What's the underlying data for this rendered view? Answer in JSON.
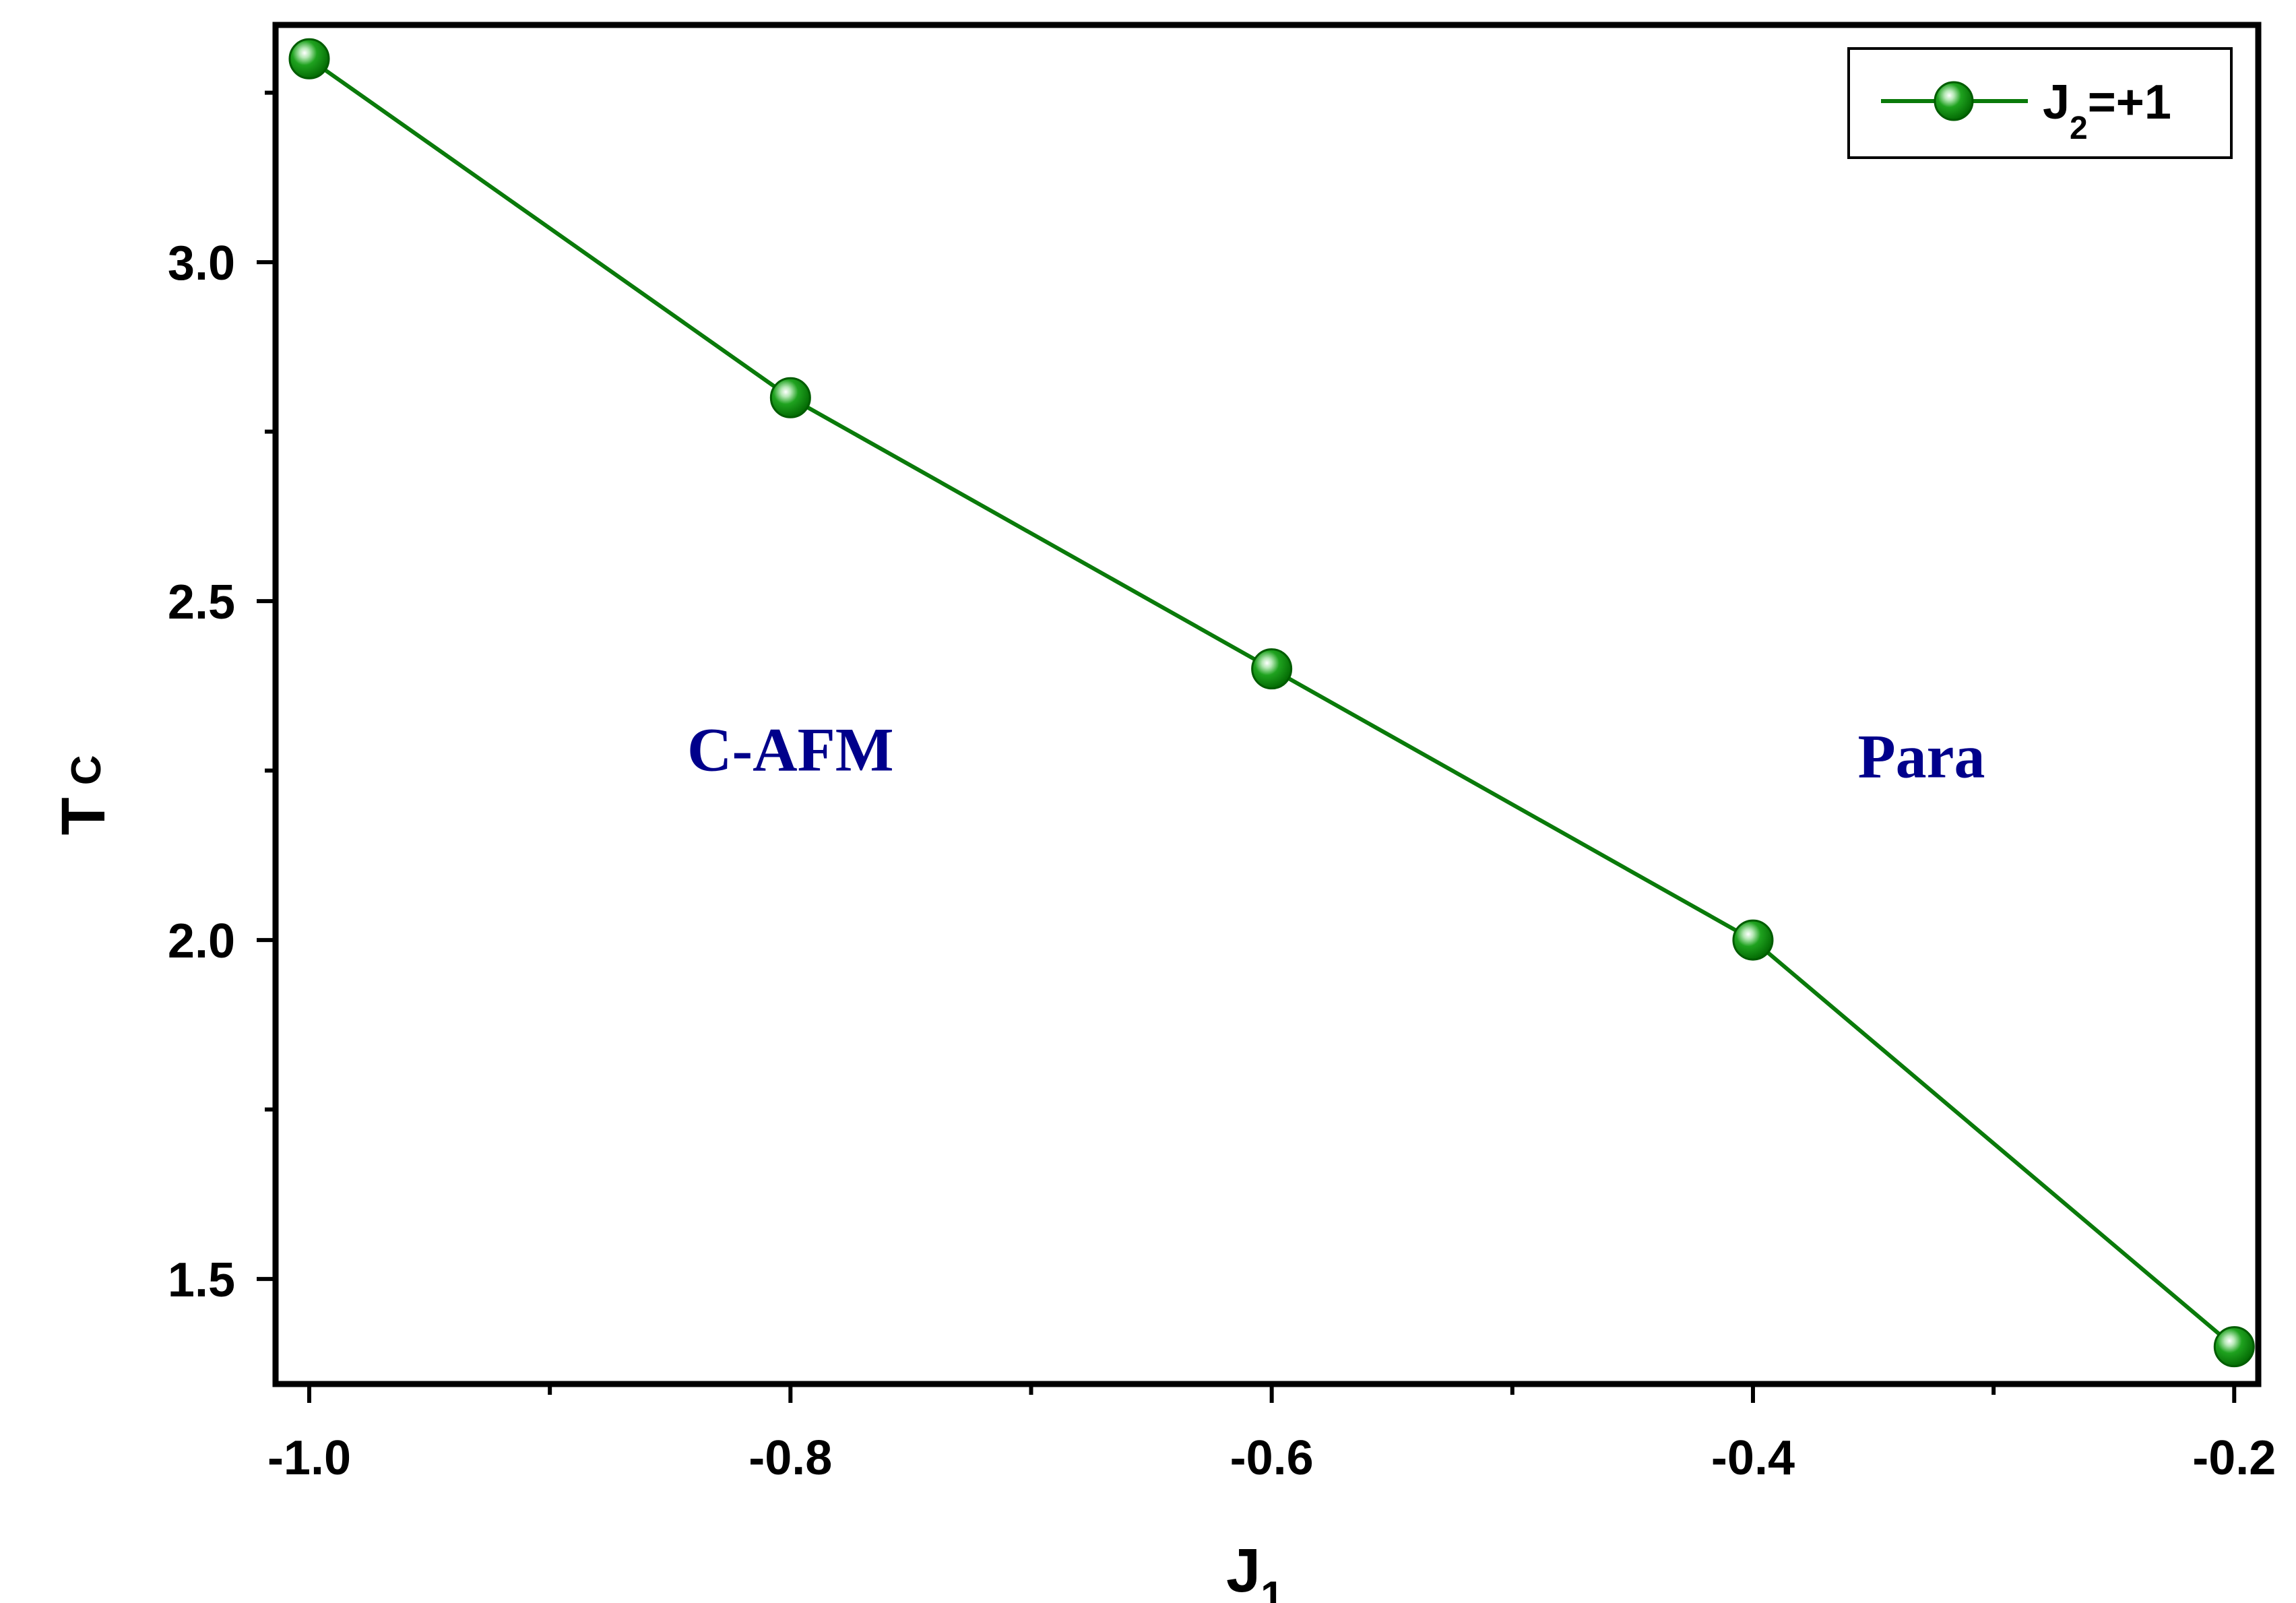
{
  "chart_data": {
    "type": "line",
    "x": [
      -1.0,
      -0.8,
      -0.6,
      -0.4,
      -0.2
    ],
    "series": [
      {
        "name_main": "J",
        "name_sub": "2",
        "name_rest": "=+1",
        "values": [
          3.3,
          2.8,
          2.4,
          2.0,
          1.4
        ],
        "color": "#0a7a0a"
      }
    ],
    "xlabel_main": "J",
    "xlabel_sub": "1",
    "ylabel_main": "T",
    "ylabel_sub": "C",
    "xlim": [
      -1.014,
      -0.19
    ],
    "ylim": [
      1.345,
      3.35
    ],
    "xticks": [
      "-1.0",
      "-0.8",
      "-0.6",
      "-0.4",
      "-0.2"
    ],
    "xtick_values": [
      -1.0,
      -0.8,
      -0.6,
      -0.4,
      -0.2
    ],
    "xminor_values": [
      -0.9,
      -0.7,
      -0.5,
      -0.3
    ],
    "yticks": [
      "1.5",
      "2.0",
      "2.5",
      "3.0"
    ],
    "ytick_values": [
      1.5,
      2.0,
      2.5,
      3.0
    ],
    "yminor_values": [
      1.75,
      2.25,
      2.75,
      3.25
    ],
    "annotations": [
      {
        "text": "C-AFM",
        "x": -0.8,
        "y": 2.25
      },
      {
        "text": "Para",
        "x": -0.33,
        "y": 2.24
      }
    ],
    "legend_position": "top-right",
    "grid": false
  }
}
